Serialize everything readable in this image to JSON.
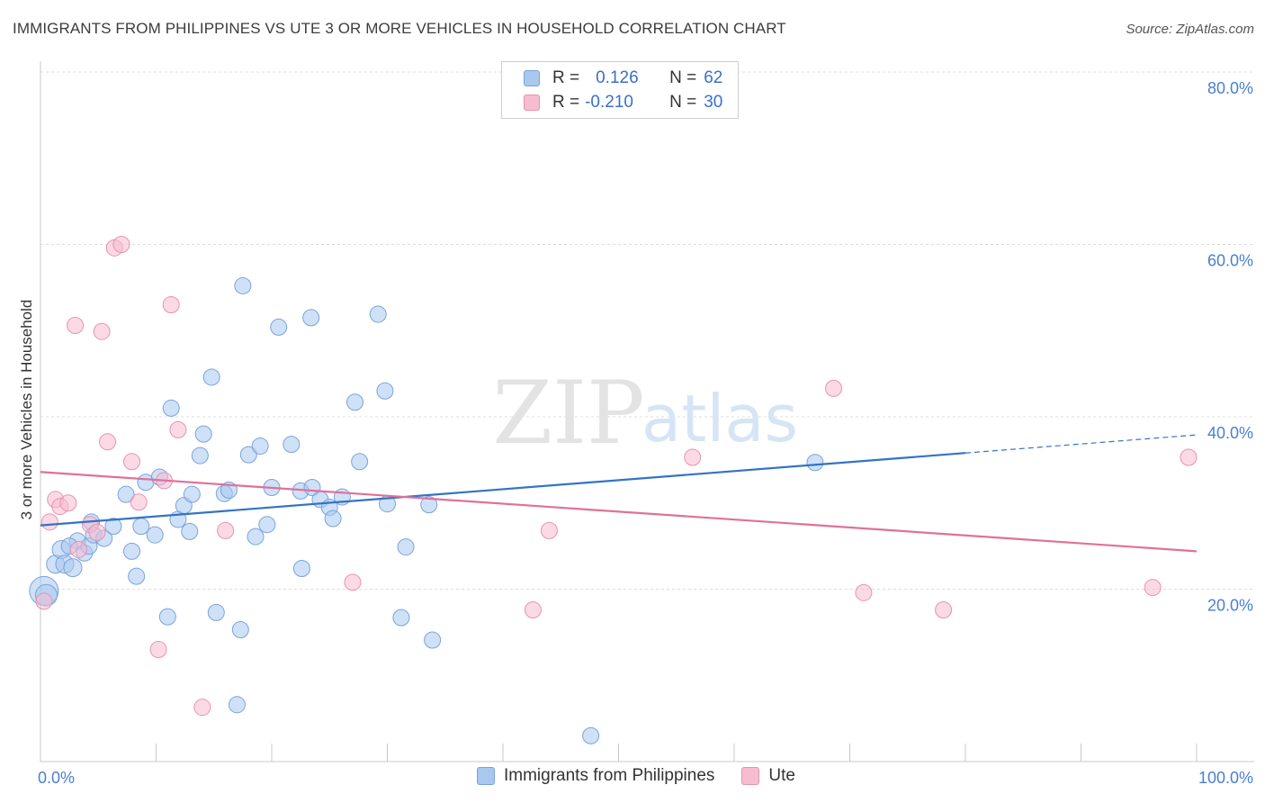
{
  "title": "IMMIGRANTS FROM PHILIPPINES VS UTE 3 OR MORE VEHICLES IN HOUSEHOLD CORRELATION CHART",
  "source": "Source: ZipAtlas.com",
  "watermark": {
    "zip": "ZIP",
    "atlas": "atlas"
  },
  "legend": {
    "rows": [
      {
        "r_label": "R =",
        "r_value": "0.126",
        "n_label": "N =",
        "n_value": "62",
        "color": "#a8c8f0",
        "border": "#7aa3db"
      },
      {
        "r_label": "R =",
        "r_value": "-0.210",
        "n_label": "N =",
        "n_value": "30",
        "color": "#f7bcd0",
        "border": "#e892b0"
      }
    ]
  },
  "bottom_legend": [
    {
      "label": "Immigrants from Philippines",
      "color": "#a8c8f0",
      "border": "#7aa3db"
    },
    {
      "label": "Ute",
      "color": "#f7bcd0",
      "border": "#e892b0"
    }
  ],
  "chart_data": {
    "type": "scatter",
    "title": "IMMIGRANTS FROM PHILIPPINES VS UTE 3 OR MORE VEHICLES IN HOUSEHOLD CORRELATION CHART",
    "xlabel": "",
    "ylabel": "3 or more Vehicles in Household",
    "xlim": [
      0,
      100
    ],
    "ylim": [
      0,
      80
    ],
    "x_tick_labels": [
      {
        "value": 0,
        "label": "0.0%"
      },
      {
        "value": 100,
        "label": "100.0%"
      }
    ],
    "y_tick_labels": [
      {
        "value": 20,
        "label": "20.0%"
      },
      {
        "value": 40,
        "label": "40.0%"
      },
      {
        "value": 60,
        "label": "60.0%"
      },
      {
        "value": 80,
        "label": "80.0%"
      }
    ],
    "grid": true,
    "series": [
      {
        "name": "Immigrants from Philippines",
        "color": "#a8c8f0",
        "stroke": "#7aa3db",
        "line_color": "#3373c4",
        "trend": {
          "x0": 0,
          "y0": 27.4,
          "x1": 80,
          "y1": 35.8,
          "dash_to_x": 100,
          "dash_to_y": 37.9
        },
        "points": [
          [
            0.3,
            19.8
          ],
          [
            0.5,
            19.3
          ],
          [
            1.3,
            22.9
          ],
          [
            1.8,
            24.6
          ],
          [
            2.1,
            22.9
          ],
          [
            2.8,
            22.5
          ],
          [
            3.2,
            25.6
          ],
          [
            3.8,
            24.2
          ],
          [
            4.2,
            25.0
          ],
          [
            4.4,
            27.8
          ],
          [
            4.6,
            26.3
          ],
          [
            5.5,
            25.9
          ],
          [
            6.3,
            27.3
          ],
          [
            7.4,
            31.0
          ],
          [
            7.9,
            24.4
          ],
          [
            8.3,
            21.5
          ],
          [
            8.7,
            27.3
          ],
          [
            9.1,
            32.4
          ],
          [
            9.9,
            26.3
          ],
          [
            10.3,
            33.0
          ],
          [
            11.0,
            16.8
          ],
          [
            11.3,
            41.0
          ],
          [
            11.9,
            28.1
          ],
          [
            12.4,
            29.7
          ],
          [
            12.9,
            26.7
          ],
          [
            13.1,
            31.0
          ],
          [
            13.8,
            35.5
          ],
          [
            14.1,
            38.0
          ],
          [
            14.8,
            44.6
          ],
          [
            15.2,
            17.3
          ],
          [
            15.9,
            31.1
          ],
          [
            16.3,
            31.5
          ],
          [
            17.0,
            6.6
          ],
          [
            17.3,
            15.3
          ],
          [
            17.5,
            55.2
          ],
          [
            18.0,
            35.6
          ],
          [
            18.6,
            26.1
          ],
          [
            19.0,
            36.6
          ],
          [
            19.6,
            27.5
          ],
          [
            20.0,
            31.8
          ],
          [
            20.6,
            50.4
          ],
          [
            21.7,
            36.8
          ],
          [
            22.6,
            22.4
          ],
          [
            22.5,
            31.4
          ],
          [
            23.4,
            51.5
          ],
          [
            23.5,
            31.8
          ],
          [
            24.2,
            30.4
          ],
          [
            25.0,
            29.5
          ],
          [
            25.3,
            28.2
          ],
          [
            26.1,
            30.7
          ],
          [
            27.2,
            41.7
          ],
          [
            27.6,
            34.8
          ],
          [
            29.2,
            51.9
          ],
          [
            29.8,
            43.0
          ],
          [
            30.0,
            29.9
          ],
          [
            31.2,
            16.7
          ],
          [
            31.6,
            24.9
          ],
          [
            33.6,
            29.8
          ],
          [
            33.9,
            14.1
          ],
          [
            47.6,
            3.0
          ],
          [
            67.0,
            34.7
          ],
          [
            2.5,
            25.0
          ]
        ],
        "radii": [
          16,
          12,
          10,
          10,
          10,
          10,
          9,
          9,
          9,
          9,
          9,
          9,
          9,
          9,
          9,
          9,
          9,
          9,
          9,
          9,
          9,
          9,
          9,
          9,
          9,
          9,
          9,
          9,
          9,
          9,
          9,
          9,
          9,
          9,
          9,
          9,
          9,
          9,
          9,
          9,
          9,
          9,
          9,
          9,
          9,
          9,
          9,
          9,
          9,
          9,
          9,
          9,
          9,
          9,
          9,
          9,
          9,
          9,
          9,
          9,
          9,
          9
        ]
      },
      {
        "name": "Ute",
        "color": "#f7bcd0",
        "stroke": "#e892b0",
        "line_color": "#e0709a",
        "trend": {
          "x0": 0,
          "y0": 33.6,
          "x1": 100,
          "y1": 24.4
        },
        "points": [
          [
            0.3,
            18.6
          ],
          [
            0.8,
            27.8
          ],
          [
            1.3,
            30.4
          ],
          [
            1.7,
            29.6
          ],
          [
            2.4,
            30.0
          ],
          [
            3.3,
            24.6
          ],
          [
            4.3,
            27.5
          ],
          [
            4.9,
            26.6
          ],
          [
            3.0,
            50.6
          ],
          [
            5.3,
            49.9
          ],
          [
            5.8,
            37.1
          ],
          [
            6.4,
            59.6
          ],
          [
            7.0,
            60.0
          ],
          [
            7.9,
            34.8
          ],
          [
            8.5,
            30.1
          ],
          [
            10.2,
            13.0
          ],
          [
            10.7,
            32.6
          ],
          [
            11.3,
            53.0
          ],
          [
            11.9,
            38.5
          ],
          [
            14.0,
            6.3
          ],
          [
            16.0,
            26.8
          ],
          [
            27.0,
            20.8
          ],
          [
            42.6,
            17.6
          ],
          [
            44.0,
            26.8
          ],
          [
            56.4,
            35.3
          ],
          [
            68.6,
            43.3
          ],
          [
            71.2,
            19.6
          ],
          [
            78.1,
            17.6
          ],
          [
            96.2,
            20.2
          ],
          [
            99.3,
            35.3
          ]
        ],
        "radii": [
          9,
          9,
          9,
          9,
          9,
          9,
          9,
          9,
          9,
          9,
          9,
          9,
          9,
          9,
          9,
          9,
          9,
          9,
          9,
          9,
          9,
          9,
          9,
          9,
          9,
          9,
          9,
          9,
          9,
          9
        ]
      }
    ]
  }
}
